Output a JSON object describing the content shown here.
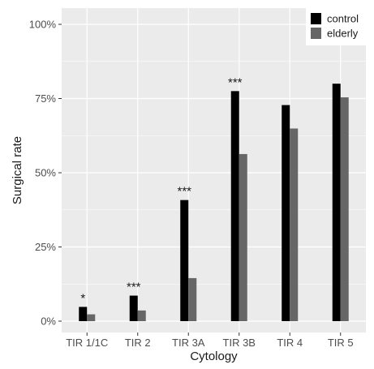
{
  "chart_data": {
    "type": "bar",
    "title": "",
    "xlabel": "Cytology",
    "ylabel": "Surgical rate",
    "categories": [
      "TIR 1/1C",
      "TIR 2",
      "TIR 3A",
      "TIR 3B",
      "TIR 4",
      "TIR 5"
    ],
    "series": [
      {
        "name": "control",
        "color": "#000000",
        "values": [
          4.8,
          8.6,
          40.8,
          77.5,
          72.8,
          80.0
        ]
      },
      {
        "name": "elderly",
        "color": "#666666",
        "values": [
          2.3,
          3.6,
          14.5,
          56.3,
          64.9,
          75.4
        ]
      }
    ],
    "annotations": [
      "*",
      "***",
      "***",
      "***",
      "",
      ""
    ],
    "ylim": [
      0,
      100
    ],
    "yticks": [
      "0%",
      "25%",
      "50%",
      "75%",
      "100%"
    ],
    "ytick_values": [
      0,
      25,
      50,
      75,
      100
    ],
    "grid": true,
    "legend_position": "top-right",
    "panel_color": "#ebebeb"
  }
}
